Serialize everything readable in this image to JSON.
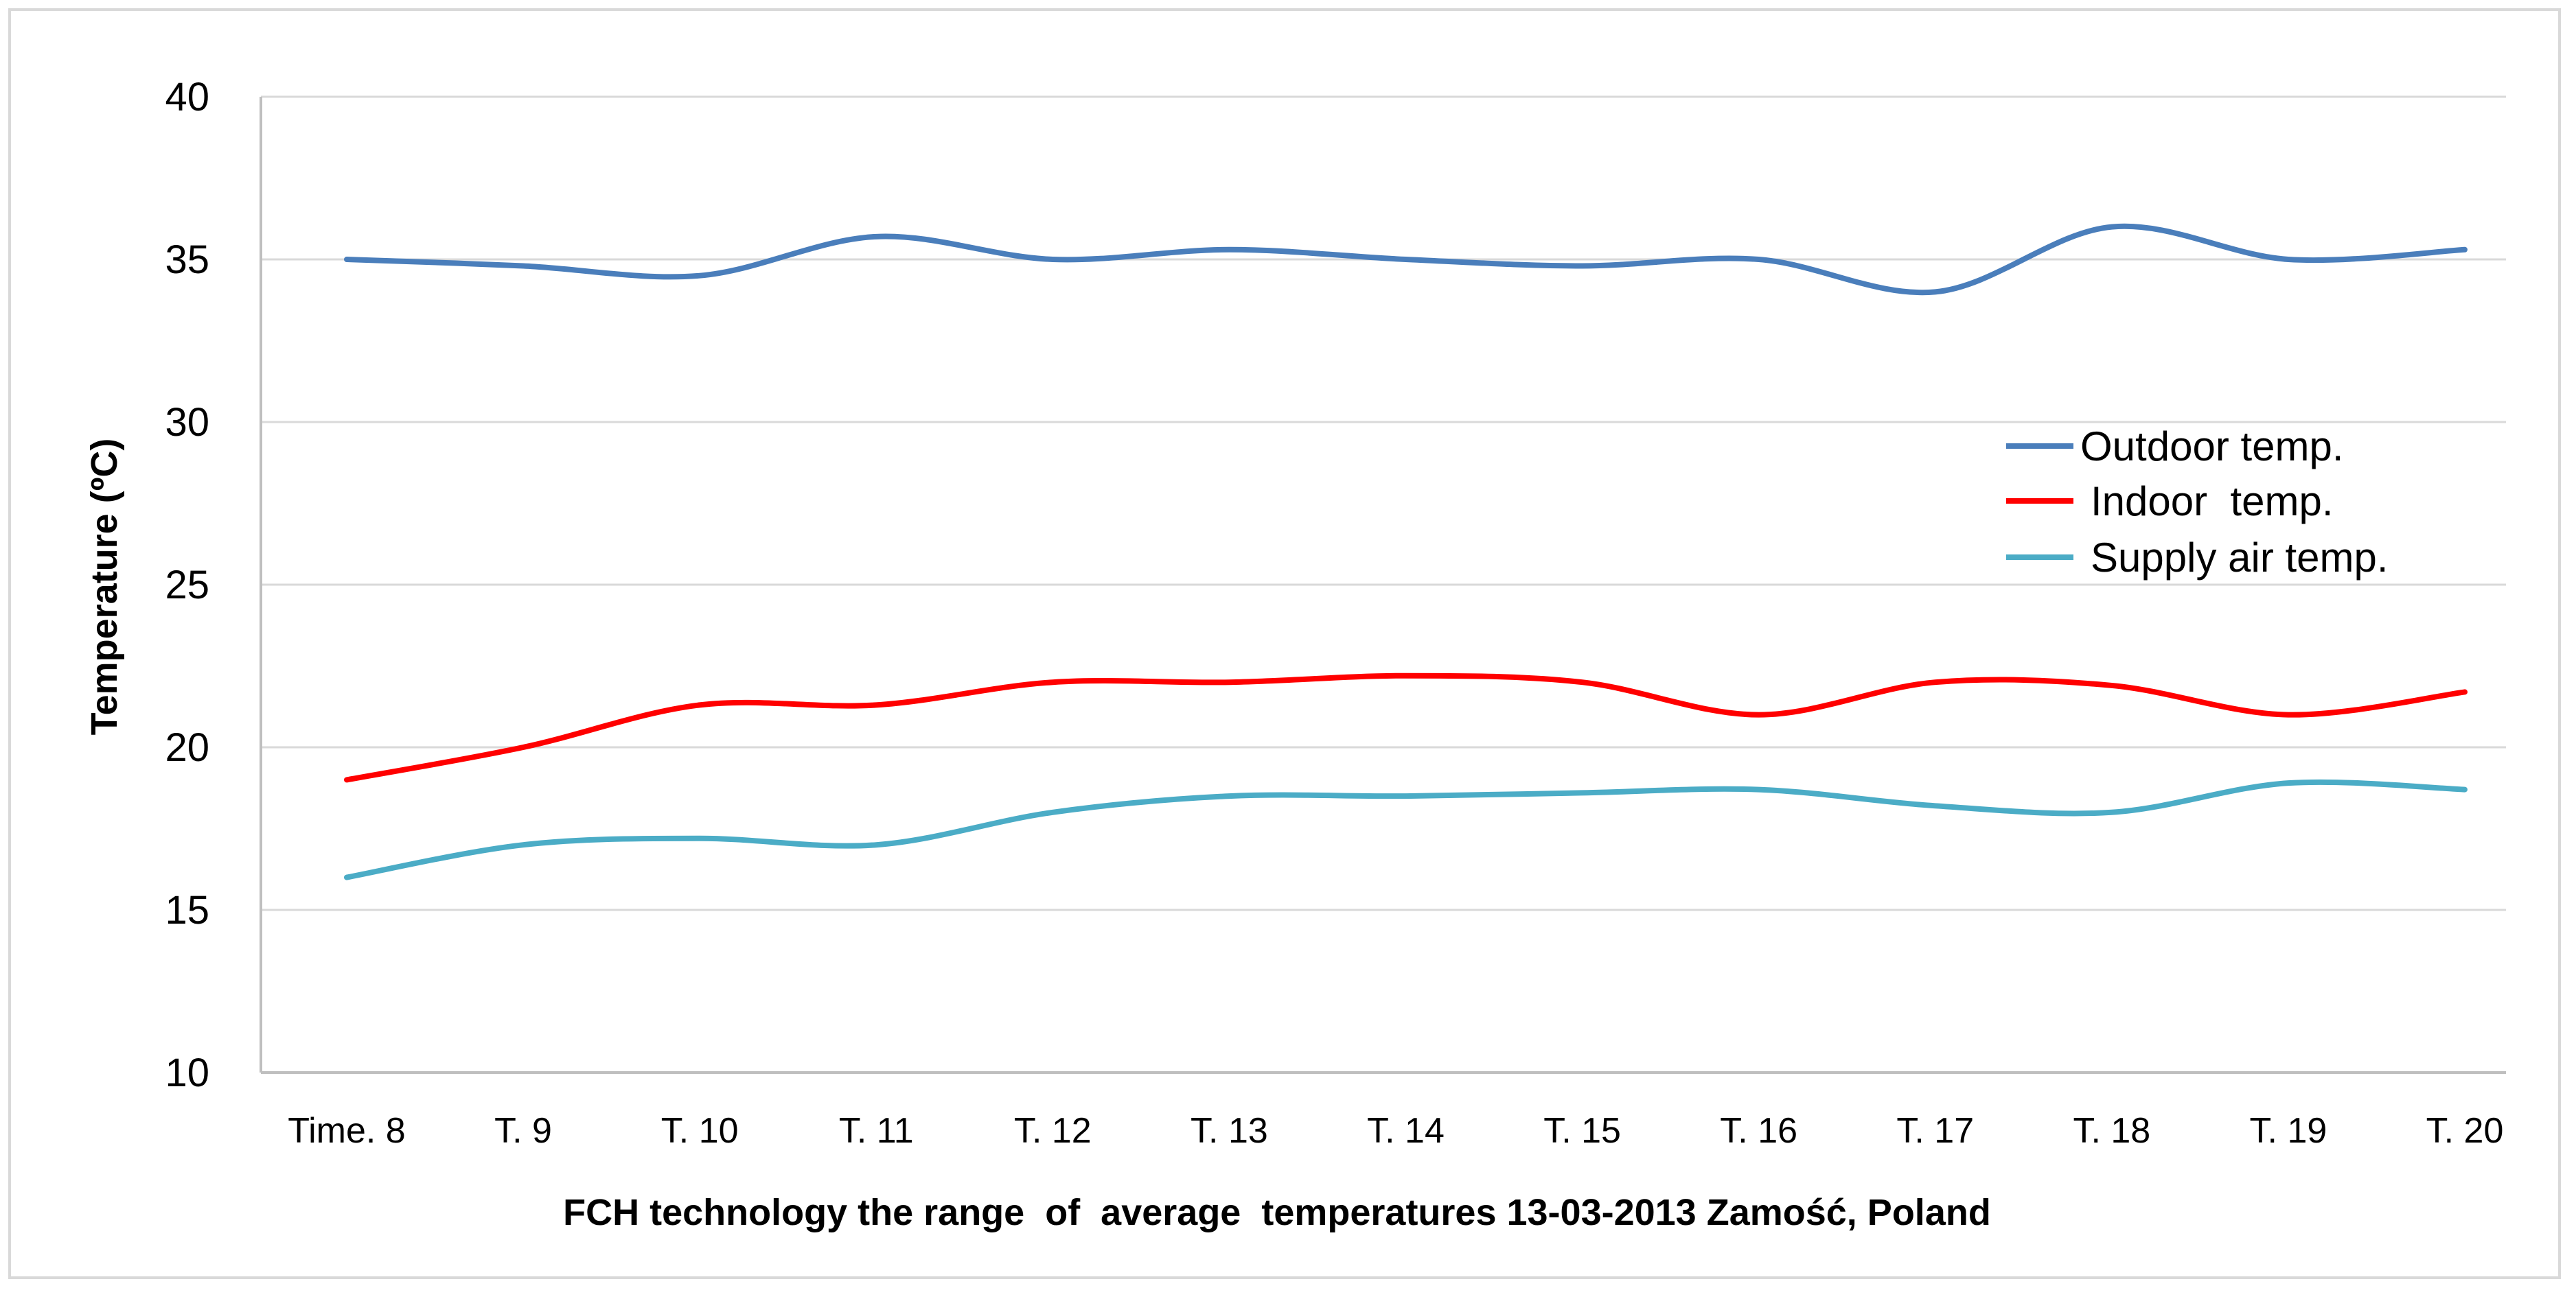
{
  "chart_data": {
    "type": "line",
    "title": "",
    "xlabel": "FCH technology the range  of  average  temperatures 13-03-2013 Zamość, Poland",
    "ylabel": "Temperature (ºC)",
    "ylim": [
      10,
      40
    ],
    "yticks": [
      10,
      15,
      20,
      25,
      30,
      35,
      40
    ],
    "grid": "horizontal",
    "legend_position": "center-right",
    "categories": [
      "Time. 8",
      "T. 9",
      "T. 10",
      "T. 11",
      "T. 12",
      "T. 13",
      "T. 14",
      "T. 15",
      "T. 16",
      "T. 17",
      "T. 18",
      "T. 19",
      "T. 20"
    ],
    "series": [
      {
        "name": "Outdoor temp.",
        "color": "#4a7ebb",
        "values": [
          35.0,
          34.8,
          34.5,
          35.7,
          35.0,
          35.3,
          35.0,
          34.8,
          35.0,
          34.0,
          36.0,
          35.0,
          35.3
        ]
      },
      {
        "name": "Indoor  temp.",
        "color": "#ff0000",
        "values": [
          19.0,
          20.0,
          21.3,
          21.3,
          22.0,
          22.0,
          22.2,
          22.0,
          21.0,
          22.0,
          21.9,
          21.0,
          21.7
        ]
      },
      {
        "name": "Supply air temp.",
        "color": "#4bacc6",
        "values": [
          16.0,
          17.0,
          17.2,
          17.0,
          18.0,
          18.5,
          18.5,
          18.6,
          18.7,
          18.2,
          18.0,
          18.9,
          18.7
        ]
      }
    ]
  }
}
